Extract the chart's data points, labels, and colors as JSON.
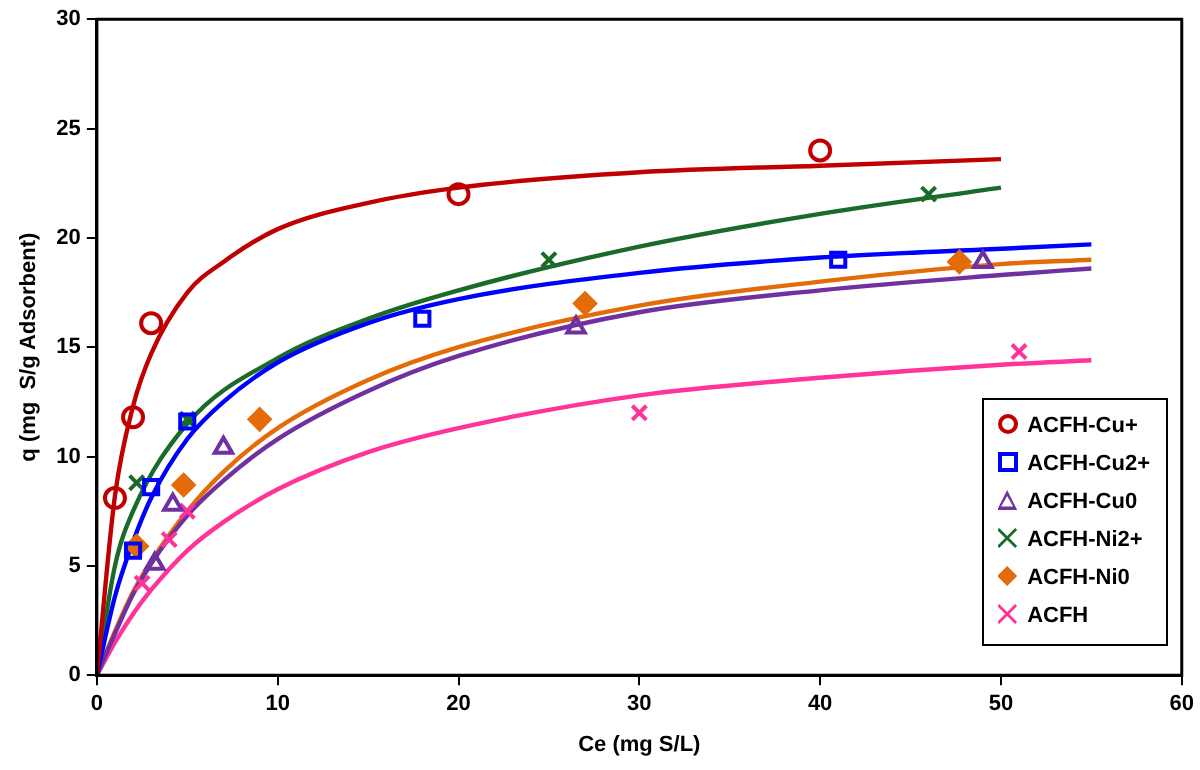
{
  "chart_data": {
    "type": "scatter",
    "xlabel": "Ce (mg S/L)",
    "ylabel": "q (mg  S/g Adsorbent)",
    "xlim": [
      0,
      60
    ],
    "xticks": [
      0,
      10,
      20,
      30,
      40,
      50,
      60
    ],
    "ylim": [
      0,
      30
    ],
    "yticks": [
      0,
      5,
      10,
      15,
      20,
      25,
      30
    ],
    "grid": false,
    "legend": "bottom right",
    "series": [
      {
        "name": "ACFH-Cu+",
        "color": "#c00000",
        "marker": "circle",
        "x": [
          1,
          2,
          3,
          20,
          40
        ],
        "values": [
          8.1,
          11.8,
          16.1,
          22,
          24
        ]
      },
      {
        "name": "ACFH-Cu2+",
        "color": "#0000ff",
        "marker": "square",
        "x": [
          2,
          3,
          5,
          18,
          41
        ],
        "values": [
          5.7,
          8.6,
          11.6,
          16.3,
          19
        ]
      },
      {
        "name": "ACFH-Cu0",
        "color": "#7030a0",
        "marker": "triangle",
        "x": [
          3.2,
          4.2,
          7,
          26.5,
          49
        ],
        "values": [
          5.1,
          7.8,
          10.4,
          15.9,
          18.9
        ]
      },
      {
        "name": "ACFH-Ni2+",
        "color": "#1a6b2a",
        "marker": "cross",
        "x": [
          2.2,
          5,
          25,
          46
        ],
        "values": [
          8.8,
          11.7,
          19,
          22
        ]
      },
      {
        "name": "ACFH-Ni0",
        "color": "#e36c09",
        "marker": "diamond",
        "x": [
          2.2,
          4.8,
          9,
          27,
          47.7
        ],
        "values": [
          5.9,
          8.7,
          11.7,
          17,
          18.9
        ]
      },
      {
        "name": "ACFH",
        "color": "#ff3399",
        "marker": "cross",
        "x": [
          2.5,
          4,
          5,
          30,
          51
        ],
        "values": [
          4.2,
          6.2,
          7.5,
          12,
          14.8
        ]
      },
      {
        "type": "line",
        "color": "#c00000",
        "marker": "none",
        "x": [
          0,
          1,
          2,
          3,
          5,
          7,
          10,
          15,
          20,
          30,
          40,
          50
        ],
        "values": [
          0,
          8.2,
          12.3,
          14.7,
          17.5,
          18.9,
          20.4,
          21.6,
          22.3,
          23,
          23.3,
          23.6
        ]
      },
      {
        "type": "line",
        "color": "#0000ff",
        "marker": "none",
        "x": [
          0,
          1,
          2,
          3,
          5,
          7,
          10,
          15,
          20,
          30,
          40,
          50,
          55
        ],
        "values": [
          0,
          3.6,
          6.1,
          8.1,
          10.8,
          12.5,
          14.3,
          16.1,
          17.2,
          18.4,
          19.1,
          19.5,
          19.7
        ]
      },
      {
        "type": "line",
        "color": "#7030a0",
        "marker": "none",
        "x": [
          0,
          1,
          2,
          3,
          5,
          7,
          10,
          15,
          20,
          30,
          40,
          50,
          55
        ],
        "values": [
          0,
          1.9,
          3.7,
          5.1,
          7.3,
          8.9,
          10.8,
          13,
          14.6,
          16.6,
          17.6,
          18.3,
          18.6
        ]
      },
      {
        "type": "line",
        "color": "#1a6b2a",
        "marker": "none",
        "x": [
          0,
          1,
          2,
          5,
          10,
          15,
          20,
          30,
          40,
          50
        ],
        "values": [
          0,
          5,
          7.5,
          11.5,
          14.5,
          16.3,
          17.6,
          19.6,
          21.1,
          22.3
        ]
      },
      {
        "type": "line",
        "color": "#e36c09",
        "marker": "none",
        "x": [
          0,
          1,
          2,
          3,
          5,
          7,
          10,
          15,
          20,
          30,
          40,
          50,
          55
        ],
        "values": [
          0,
          2,
          3.8,
          5.2,
          7.5,
          9.3,
          11.3,
          13.5,
          15,
          16.9,
          18,
          18.8,
          19
        ]
      },
      {
        "type": "line",
        "color": "#ff3399",
        "marker": "none",
        "x": [
          0,
          1,
          2,
          3,
          5,
          7,
          10,
          15,
          20,
          30,
          40,
          50,
          55
        ],
        "values": [
          0,
          1.5,
          2.8,
          3.9,
          5.7,
          7,
          8.5,
          10.2,
          11.3,
          12.8,
          13.6,
          14.2,
          14.4
        ]
      }
    ]
  }
}
